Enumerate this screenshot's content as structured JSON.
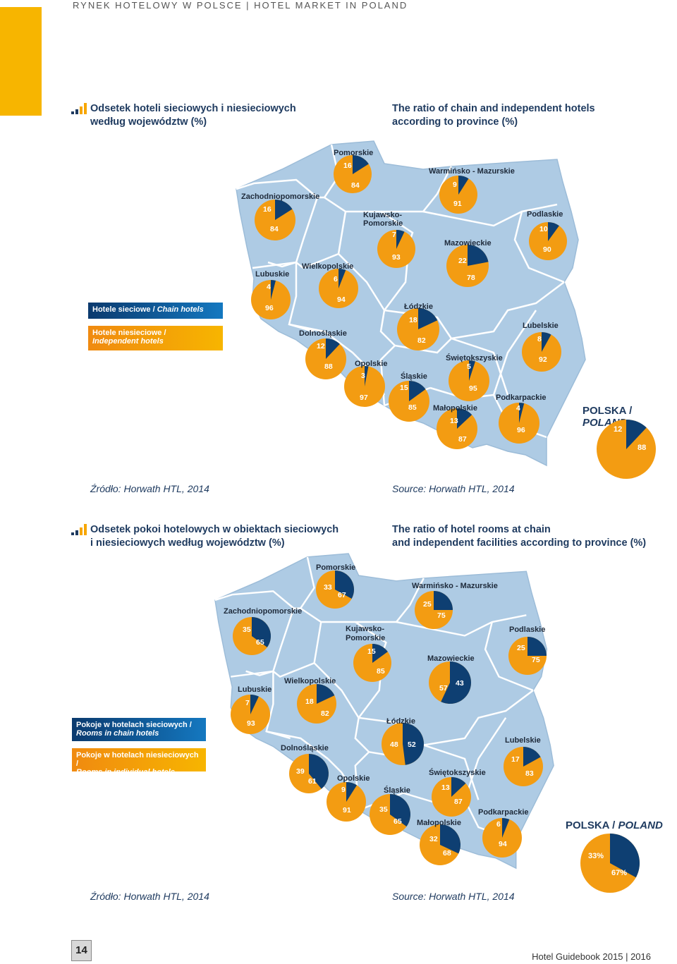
{
  "header": {
    "text": "RYNEK HOTELOWY W POLSCE  |  HOTEL MARKET IN POLAND"
  },
  "colors": {
    "chain": "#0e3f72",
    "independent": "#f39c12",
    "map": "#aecbe4",
    "border": "#ffffff",
    "accent": "#f7b500"
  },
  "section1": {
    "title_pl_1": "Odsetek hoteli sieciowych i niesieciowych",
    "title_pl_2": "według województw (%)",
    "title_en_1": "The ratio of chain and independent hotels",
    "title_en_2": "according to province (%)",
    "legend_chain": "Hotele sieciowe / ",
    "legend_chain_en": "Chain hotels",
    "legend_indep_1": "Hotele niesieciowe /",
    "legend_indep_2": "Independent hotels",
    "poland_pl": "POLSKA / ",
    "poland_en": "POLAND",
    "source_pl": "Źródło: Horwath HTL, 2014",
    "source_en": "Source: Horwath HTL, 2014"
  },
  "section2": {
    "title_pl_1": "Odsetek pokoi hotelowych w obiektach sieciowych",
    "title_pl_2": "i niesieciowych według województw (%)",
    "title_en_1": "The ratio of hotel rooms at chain",
    "title_en_2": "and independent facilities according to province (%)",
    "legend_chain_1": "Pokoje w hotelach sieciowych /",
    "legend_chain_2": "Rooms in chain hotels",
    "legend_indep_1": "Pokoje w hotelach niesieciowych /",
    "legend_indep_2": "Rooms in individual hotels",
    "poland_pl": "POLSKA / ",
    "poland_en": "POLAND",
    "source_pl": "Źródło: Horwath HTL, 2014",
    "source_en": "Source: Horwath HTL, 2014"
  },
  "chart_data": [
    {
      "type": "pie",
      "title": "Odsetek hoteli sieciowych i niesieciowych według województw (%)",
      "series_names": [
        "Hotele sieciowe / Chain hotels",
        "Hotele niesieciowe / Independent hotels"
      ],
      "provinces": [
        {
          "name": "Pomorskie",
          "chain": 16,
          "independent": 84
        },
        {
          "name": "Warmińsko - Mazurskie",
          "chain": 9,
          "independent": 91
        },
        {
          "name": "Zachodniopomorskie",
          "chain": 16,
          "independent": 84
        },
        {
          "name": "Kujawsko-Pomorskie",
          "chain": 7,
          "independent": 93
        },
        {
          "name": "Podlaskie",
          "chain": 10,
          "independent": 90
        },
        {
          "name": "Mazowieckie",
          "chain": 22,
          "independent": 78
        },
        {
          "name": "Lubuskie",
          "chain": 4,
          "independent": 96
        },
        {
          "name": "Wielkopolskie",
          "chain": 6,
          "independent": 94
        },
        {
          "name": "Łódzkie",
          "chain": 18,
          "independent": 82
        },
        {
          "name": "Lubelskie",
          "chain": 8,
          "independent": 92
        },
        {
          "name": "Dolnośląskie",
          "chain": 12,
          "independent": 88
        },
        {
          "name": "Opolskie",
          "chain": 3,
          "independent": 97
        },
        {
          "name": "Śląskie",
          "chain": 15,
          "independent": 85
        },
        {
          "name": "Świętokszyskie",
          "chain": 5,
          "independent": 95
        },
        {
          "name": "Podkarpackie",
          "chain": 4,
          "independent": 96
        },
        {
          "name": "Małopolskie",
          "chain": 13,
          "independent": 87
        },
        {
          "name": "POLSKA / POLAND",
          "chain": 12,
          "independent": 88
        }
      ]
    },
    {
      "type": "pie",
      "title": "Odsetek pokoi hotelowych w obiektach sieciowych i niesieciowych według województw (%)",
      "series_names": [
        "Pokoje w hotelach sieciowych / Rooms in chain hotels",
        "Pokoje w hotelach niesieciowych / Rooms in individual hotels"
      ],
      "provinces": [
        {
          "name": "Pomorskie",
          "chain": 33,
          "independent": 67
        },
        {
          "name": "Warmińsko - Mazurskie",
          "chain": 25,
          "independent": 75
        },
        {
          "name": "Zachodniopomorskie",
          "chain": 35,
          "independent": 65
        },
        {
          "name": "Kujawsko-Pomorskie",
          "chain": 15,
          "independent": 85
        },
        {
          "name": "Podlaskie",
          "chain": 25,
          "independent": 75
        },
        {
          "name": "Mazowieckie",
          "chain": 57,
          "independent": 43
        },
        {
          "name": "Lubuskie",
          "chain": 7,
          "independent": 93
        },
        {
          "name": "Wielkopolskie",
          "chain": 18,
          "independent": 82
        },
        {
          "name": "Łódzkie",
          "chain": 48,
          "independent": 52
        },
        {
          "name": "Lubelskie",
          "chain": 17,
          "independent": 83
        },
        {
          "name": "Dolnośląskie",
          "chain": 39,
          "independent": 61
        },
        {
          "name": "Opolskie",
          "chain": 9,
          "independent": 91
        },
        {
          "name": "Śląskie",
          "chain": 35,
          "independent": 65
        },
        {
          "name": "Świętokszyskie",
          "chain": 13,
          "independent": 87
        },
        {
          "name": "Podkarpackie",
          "chain": 6,
          "independent": 94
        },
        {
          "name": "Małopolskie",
          "chain": 32,
          "independent": 68
        },
        {
          "name": "POLSKA / POLAND",
          "chain": "33%",
          "independent": "67%"
        }
      ]
    }
  ],
  "footer": {
    "page_number": "14",
    "guidebook": "Hotel Guidebook 2015 | 2016"
  }
}
